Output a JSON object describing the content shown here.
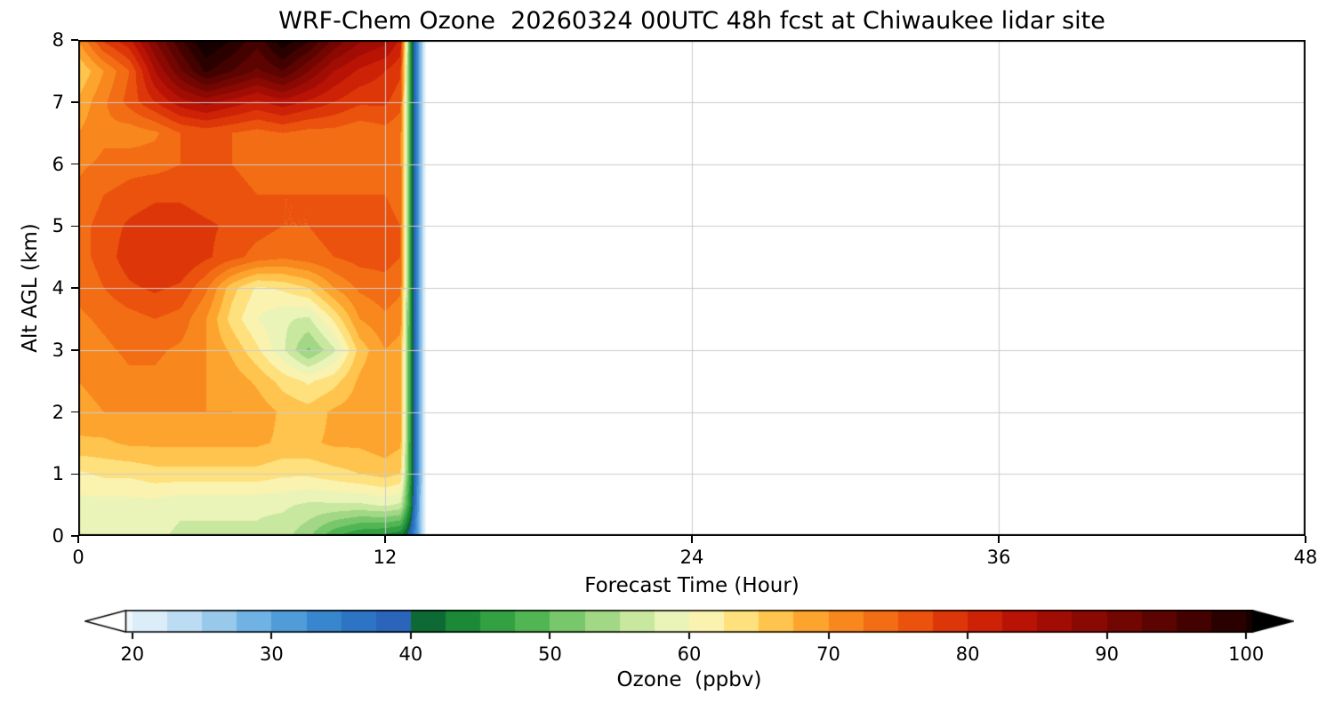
{
  "chart_data": {
    "type": "heatmap",
    "title": "WRF-Chem Ozone  20260324 00UTC 48h fcst at Chiwaukee lidar site",
    "xlabel": "Forecast Time (Hour)",
    "ylabel": "Alt AGL (km)",
    "xlim": [
      0,
      48
    ],
    "ylim": [
      0,
      8
    ],
    "x_ticks": [
      0,
      12,
      24,
      36,
      48
    ],
    "y_ticks": [
      0,
      1,
      2,
      3,
      4,
      5,
      6,
      7,
      8
    ],
    "grid_on": true,
    "gridline_x": [
      12,
      24,
      36
    ],
    "gridline_y": [
      1,
      2,
      3,
      4,
      5,
      6,
      7
    ],
    "data_time_extent_hours": 13.6,
    "contour_interval_ppbv": 2.5,
    "colorbar": {
      "label": "Ozone  (ppbv)",
      "ticks": [
        20,
        30,
        40,
        50,
        60,
        70,
        80,
        90,
        100
      ],
      "vmin": 19.5,
      "vmax": 100.5,
      "extend": "both",
      "under_color": "#ffffff",
      "over_color": "#000000"
    },
    "colormap_stops": [
      [
        15,
        "#ffffff"
      ],
      [
        20,
        "#e8f4fb"
      ],
      [
        23,
        "#c6e2f5"
      ],
      [
        26,
        "#9ccbec"
      ],
      [
        29,
        "#6cb0e2"
      ],
      [
        32,
        "#4595d6"
      ],
      [
        35,
        "#2f7cc9"
      ],
      [
        38,
        "#2a68bd"
      ],
      [
        40.5,
        "#2d5fb5"
      ],
      [
        41.3,
        "#0b6b2d"
      ],
      [
        44,
        "#1d8c38"
      ],
      [
        47,
        "#3aa845"
      ],
      [
        50,
        "#63bf5e"
      ],
      [
        53,
        "#96d27e"
      ],
      [
        56,
        "#c4e69c"
      ],
      [
        58.5,
        "#e7f3b6"
      ],
      [
        60,
        "#f7f7c4"
      ],
      [
        62.5,
        "#fdec9a"
      ],
      [
        65,
        "#fed45f"
      ],
      [
        67.5,
        "#feb43b"
      ],
      [
        70,
        "#fb9423"
      ],
      [
        72.5,
        "#f57a18"
      ],
      [
        75,
        "#ef600f"
      ],
      [
        77.5,
        "#e4440a"
      ],
      [
        80,
        "#d62a07"
      ],
      [
        83,
        "#c01605"
      ],
      [
        85,
        "#ab0f04"
      ],
      [
        88,
        "#920a03"
      ],
      [
        90,
        "#7d0702"
      ],
      [
        93,
        "#620401"
      ],
      [
        96,
        "#450200"
      ],
      [
        100,
        "#1f0100"
      ],
      [
        105,
        "#000000"
      ]
    ],
    "grid": {
      "x_hours": [
        0,
        1,
        2,
        3,
        4,
        5,
        6,
        7,
        8,
        9,
        10,
        11,
        12,
        12.6,
        13,
        13.4,
        13.6
      ],
      "alt_km": [
        0,
        0.5,
        1,
        1.5,
        2,
        2.5,
        3,
        3.5,
        4,
        4.5,
        5,
        5.5,
        6,
        6.5,
        7,
        7.5,
        8
      ],
      "ozone_ppbv": [
        [
          58,
          58,
          58,
          58,
          57,
          57,
          57,
          57,
          56,
          53,
          48,
          45,
          44,
          43,
          38,
          26,
          19
        ],
        [
          59,
          59,
          59,
          59,
          58,
          58,
          58,
          58,
          58,
          57,
          57,
          57,
          58,
          57,
          44,
          26,
          19
        ],
        [
          62,
          63,
          63,
          64,
          64,
          64,
          64,
          64,
          63,
          63,
          64,
          65,
          66,
          65,
          45,
          27,
          19
        ],
        [
          67,
          67,
          68,
          68,
          68,
          68,
          68,
          68,
          67,
          67,
          68,
          68,
          69,
          68,
          45,
          27,
          19
        ],
        [
          69,
          70,
          70,
          70,
          70,
          70,
          70,
          69,
          67,
          66,
          68,
          69,
          70,
          69,
          45,
          27,
          19
        ],
        [
          70,
          71,
          72,
          72,
          71,
          70,
          69,
          67,
          64,
          62,
          64,
          68,
          70,
          69,
          45,
          27,
          19
        ],
        [
          71,
          72,
          73,
          73,
          72,
          70,
          67,
          63,
          58,
          52,
          57,
          66,
          70,
          69,
          45,
          27,
          19
        ],
        [
          72,
          73,
          74,
          75,
          74,
          70,
          64,
          60,
          58,
          57,
          63,
          70,
          72,
          71,
          45,
          27,
          19
        ],
        [
          73,
          75,
          77,
          78,
          77,
          73,
          66,
          62,
          63,
          65,
          70,
          73,
          74,
          73,
          45,
          27,
          19
        ],
        [
          74,
          76,
          79,
          80,
          80,
          78,
          76,
          74,
          73,
          74,
          75,
          76,
          76,
          75,
          45,
          27,
          19
        ],
        [
          74,
          76,
          78,
          79,
          79,
          78,
          77,
          76,
          75,
          75,
          76,
          76,
          76,
          75,
          45,
          27,
          19
        ],
        [
          73,
          75,
          76,
          77,
          77,
          76,
          76,
          75,
          75,
          75,
          75,
          75,
          75,
          74,
          45,
          27,
          19
        ],
        [
          72,
          73,
          74,
          74,
          75,
          75,
          75,
          74,
          74,
          74,
          74,
          74,
          74,
          73,
          45,
          27,
          19
        ],
        [
          70,
          72,
          71,
          72,
          75,
          76,
          75,
          74,
          75,
          74,
          74,
          73,
          74,
          73,
          45,
          27,
          19
        ],
        [
          68,
          72,
          76,
          80,
          84,
          86,
          84,
          82,
          84,
          82,
          80,
          78,
          78,
          76,
          45,
          27,
          19
        ],
        [
          65,
          70,
          75,
          85,
          92,
          98,
          95,
          92,
          95,
          90,
          85,
          82,
          80,
          78,
          45,
          27,
          19
        ],
        [
          70,
          78,
          82,
          90,
          97,
          103,
          100,
          96,
          102,
          98,
          92,
          88,
          86,
          82,
          45,
          27,
          19
        ]
      ]
    }
  }
}
